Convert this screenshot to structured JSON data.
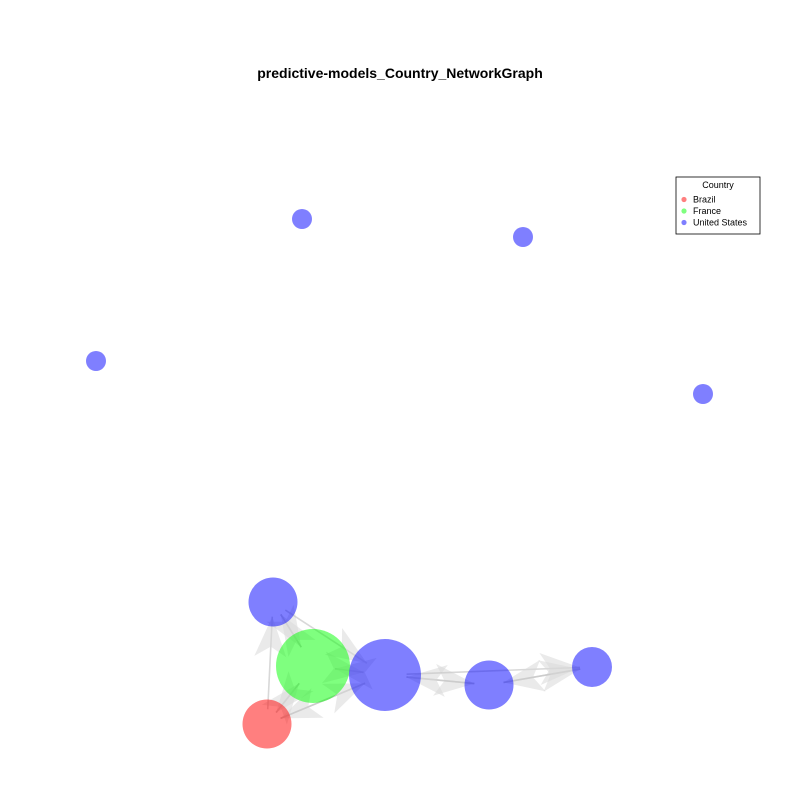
{
  "title": "predictive-models_Country_NetworkGraph",
  "legend": {
    "title": "Country",
    "items": [
      {
        "label": "Brazil",
        "color": "#ff0000"
      },
      {
        "label": "France",
        "color": "#00ff00"
      },
      {
        "label": "United States",
        "color": "#0000ff"
      }
    ]
  },
  "nodes": [
    {
      "id": "n1",
      "country": "United States",
      "size": "small"
    },
    {
      "id": "n2",
      "country": "United States",
      "size": "small"
    },
    {
      "id": "n3",
      "country": "United States",
      "size": "small"
    },
    {
      "id": "n4",
      "country": "United States",
      "size": "small"
    },
    {
      "id": "n5",
      "country": "United States",
      "size": "large"
    },
    {
      "id": "n6",
      "country": "France",
      "size": "xlarge"
    },
    {
      "id": "n7",
      "country": "United States",
      "size": "xxlarge"
    },
    {
      "id": "n8",
      "country": "United States",
      "size": "large"
    },
    {
      "id": "n9",
      "country": "United States",
      "size": "medium"
    },
    {
      "id": "n10",
      "country": "Brazil",
      "size": "large"
    }
  ],
  "edges": [
    {
      "from": "n5",
      "to": "n6"
    },
    {
      "from": "n6",
      "to": "n5"
    },
    {
      "from": "n10",
      "to": "n6"
    },
    {
      "from": "n6",
      "to": "n10"
    },
    {
      "from": "n10",
      "to": "n5"
    },
    {
      "from": "n5",
      "to": "n7"
    },
    {
      "from": "n6",
      "to": "n7"
    },
    {
      "from": "n7",
      "to": "n6"
    },
    {
      "from": "n7",
      "to": "n10"
    },
    {
      "from": "n10",
      "to": "n7"
    },
    {
      "from": "n7",
      "to": "n8"
    },
    {
      "from": "n8",
      "to": "n7"
    },
    {
      "from": "n7",
      "to": "n9"
    },
    {
      "from": "n9",
      "to": "n8"
    },
    {
      "from": "n8",
      "to": "n9"
    }
  ]
}
